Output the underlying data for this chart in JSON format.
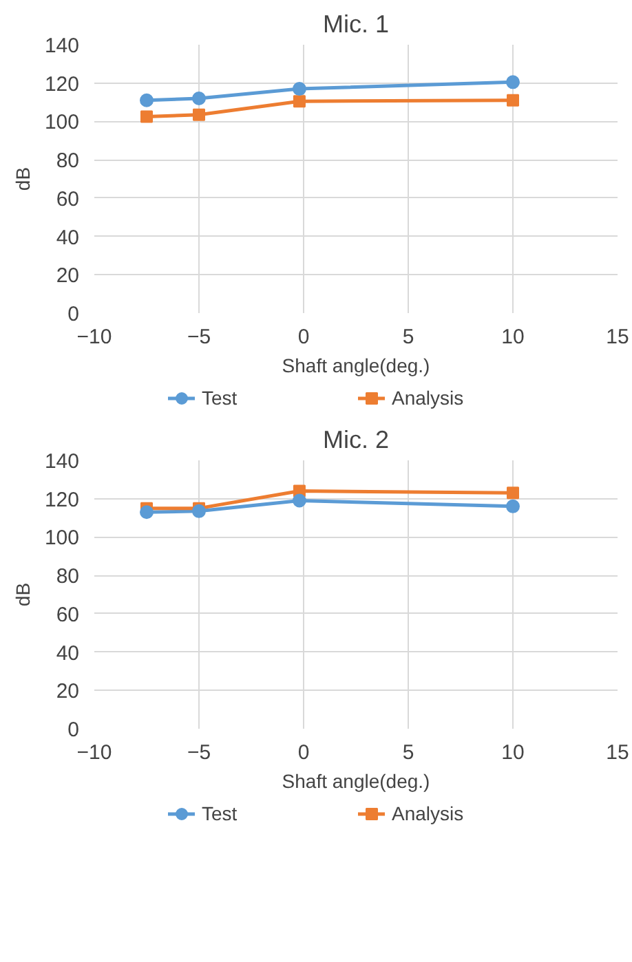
{
  "chart_data": [
    {
      "type": "line",
      "title": "Mic. 1",
      "xlabel": "Shaft angle(deg.)",
      "ylabel": "dB",
      "x": [
        -7.5,
        -5,
        -0.2,
        10
      ],
      "xlim": [
        -10,
        15
      ],
      "xticks": [
        -10,
        -5,
        0,
        5,
        10,
        15
      ],
      "ylim": [
        0,
        140
      ],
      "yticks": [
        0,
        20,
        40,
        60,
        80,
        100,
        120,
        140
      ],
      "grid": true,
      "legend": "bottom",
      "series": [
        {
          "name": "Test",
          "color": "#5b9bd5",
          "marker": "circle",
          "values": [
            111,
            112,
            117,
            120.5
          ]
        },
        {
          "name": "Analysis",
          "color": "#ed7d31",
          "marker": "square",
          "values": [
            102.5,
            103.5,
            110.5,
            111
          ]
        }
      ]
    },
    {
      "type": "line",
      "title": "Mic. 2",
      "xlabel": "Shaft angle(deg.)",
      "ylabel": "dB",
      "x": [
        -7.5,
        -5,
        -0.2,
        10
      ],
      "xlim": [
        -10,
        15
      ],
      "xticks": [
        -10,
        -5,
        0,
        5,
        10,
        15
      ],
      "ylim": [
        0,
        140
      ],
      "yticks": [
        0,
        20,
        40,
        60,
        80,
        100,
        120,
        140
      ],
      "grid": true,
      "legend": "bottom",
      "series": [
        {
          "name": "Test",
          "color": "#5b9bd5",
          "marker": "circle",
          "values": [
            113,
            113.5,
            119,
            116
          ]
        },
        {
          "name": "Analysis",
          "color": "#ed7d31",
          "marker": "square",
          "values": [
            115,
            115,
            124,
            123
          ]
        }
      ]
    }
  ]
}
